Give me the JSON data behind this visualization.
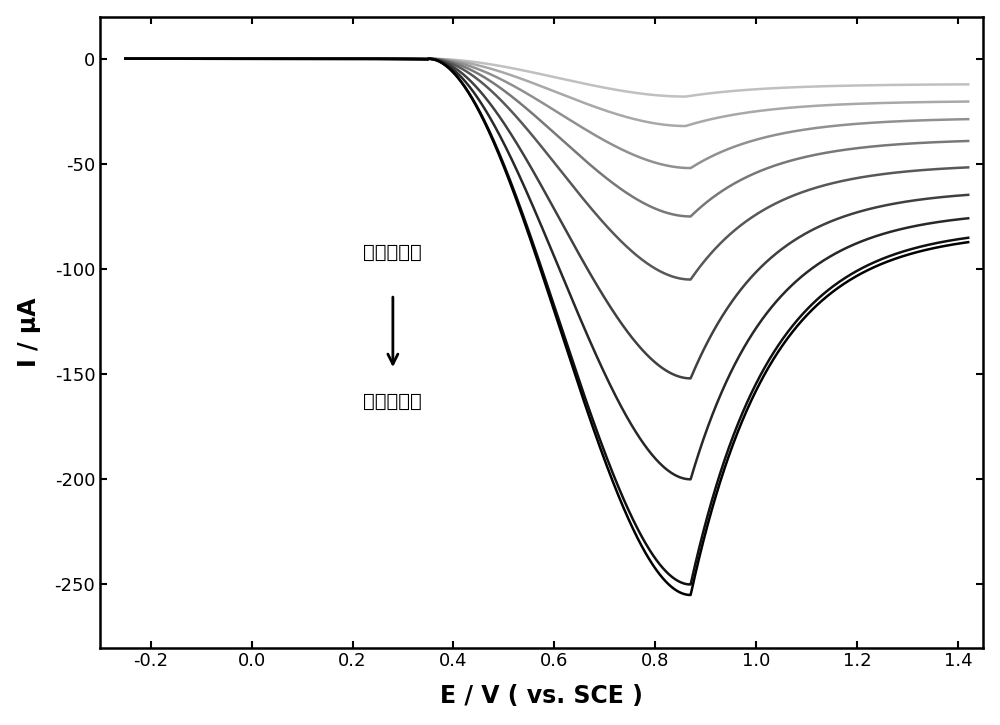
{
  "xlabel": "E / V ( vs. SCE )",
  "ylabel": "I / μA",
  "xlim": [
    -0.3,
    1.45
  ],
  "ylim": [
    -280,
    20
  ],
  "xticks": [
    -0.2,
    0.0,
    0.2,
    0.4,
    0.6,
    0.8,
    1.0,
    1.2,
    1.4
  ],
  "yticks": [
    0,
    -50,
    -100,
    -150,
    -200,
    -250
  ],
  "annotation_text1": "尿酸低浓度",
  "annotation_text2": "尿酸高浓度",
  "n_curves": 9,
  "peak_potentials": [
    0.86,
    0.86,
    0.87,
    0.87,
    0.87,
    0.87,
    0.87,
    0.87,
    0.87
  ],
  "peak_currents": [
    -18,
    -32,
    -52,
    -75,
    -105,
    -152,
    -200,
    -250,
    -255
  ],
  "tail_currents": [
    -12,
    -20,
    -28,
    -38,
    -50,
    -62,
    -72,
    -80,
    -82
  ],
  "colors": [
    "#c0c0c0",
    "#a8a8a8",
    "#909090",
    "#787878",
    "#585858",
    "#404040",
    "#282828",
    "#101010",
    "#000000"
  ],
  "background_color": "#ffffff"
}
